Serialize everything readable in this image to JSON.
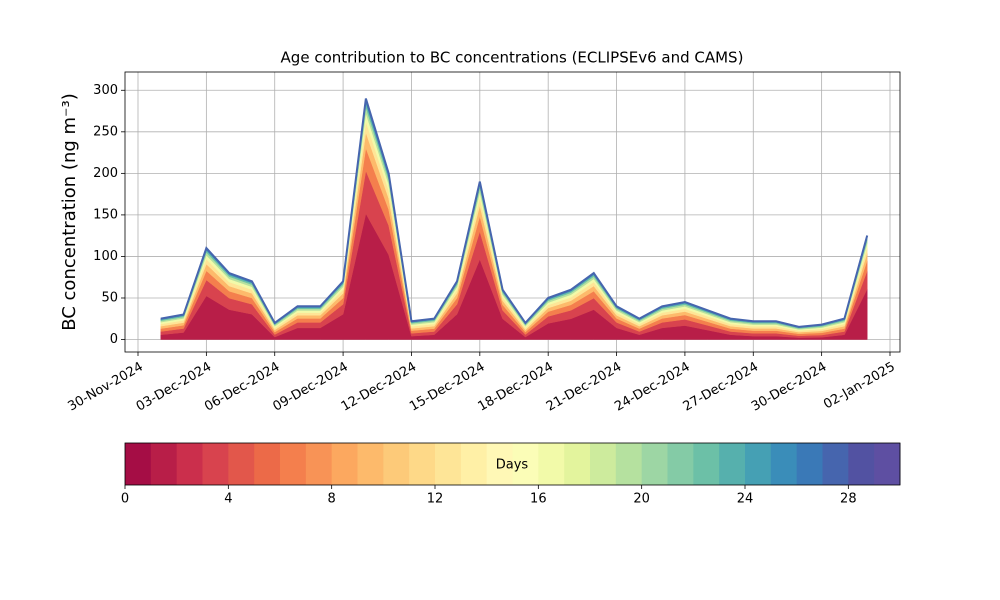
{
  "chart_data": {
    "type": "stacked_area",
    "title": "Age contribution to BC concentrations (ECLIPSEv6 and CAMS)",
    "y_label": "BC concentration (ng m⁻³)",
    "x": [
      "2024-12-01",
      "2024-12-02",
      "2024-12-03",
      "2024-12-04",
      "2024-12-05",
      "2024-12-06",
      "2024-12-07",
      "2024-12-08",
      "2024-12-09",
      "2024-12-10",
      "2024-12-11",
      "2024-12-12",
      "2024-12-13",
      "2024-12-14",
      "2024-12-15",
      "2024-12-16",
      "2024-12-17",
      "2024-12-18",
      "2024-12-19",
      "2024-12-20",
      "2024-12-21",
      "2024-12-22",
      "2024-12-23",
      "2024-12-24",
      "2024-12-25",
      "2024-12-26",
      "2024-12-27",
      "2024-12-28",
      "2024-12-29",
      "2024-12-30",
      "2024-12-31",
      "2025-01-01"
    ],
    "series": [
      {
        "color": "#b81e48",
        "values": [
          5.8,
          8.5,
          52.5,
          36,
          30.5,
          3,
          14,
          14,
          30.5,
          151.5,
          102,
          4.1,
          5.8,
          30.5,
          96.5,
          25,
          3,
          19.5,
          25,
          36,
          14,
          5.8,
          14,
          16.8,
          11.3,
          5.8,
          4.1,
          4.1,
          2.3,
          2.7,
          5.8,
          60.8
        ]
      },
      {
        "color": "#d8434e",
        "values": [
          3.9,
          4.8,
          19.2,
          13.8,
          12,
          3,
          6.6,
          6.6,
          12,
          51.6,
          35.4,
          3.4,
          3.9,
          12,
          33.6,
          10.2,
          3,
          8.4,
          10.2,
          13.8,
          6.6,
          3.9,
          6.6,
          7.5,
          5.7,
          3.9,
          3.4,
          3.4,
          2.3,
          2.7,
          3.9,
          21.9
        ]
      },
      {
        "color": "#f47f4d",
        "values": [
          3.5,
          3.9,
          11.1,
          8.4,
          7.5,
          3,
          4.8,
          4.8,
          7.5,
          27.3,
          19.2,
          3.2,
          3.5,
          7.5,
          18.3,
          6.6,
          3,
          5.7,
          6.6,
          8.4,
          4.8,
          3.5,
          4.8,
          5.3,
          4.4,
          3.5,
          3.2,
          3.2,
          2.3,
          2.7,
          3.5,
          12.5
        ]
      },
      {
        "color": "#fdba6b",
        "values": [
          2.9,
          3.2,
          8,
          6.2,
          5.6,
          2.6,
          3.8,
          3.8,
          5.6,
          18.8,
          13.4,
          2.7,
          2.9,
          5.6,
          12.8,
          5,
          2.6,
          4.4,
          5,
          6.2,
          3.8,
          2.9,
          3.8,
          4.1,
          3.5,
          2.9,
          2.7,
          2.7,
          2,
          2.3,
          2.9,
          8.9
        ]
      },
      {
        "color": "#fee597",
        "values": [
          2.6,
          2.8,
          6,
          4.8,
          4.4,
          2.4,
          3.2,
          3.2,
          4.4,
          13.2,
          9.6,
          2.5,
          2.6,
          4.4,
          9.2,
          4,
          2.4,
          3.6,
          4,
          4.8,
          3.2,
          2.6,
          3.2,
          3.4,
          3,
          2.6,
          2.5,
          2.5,
          1.8,
          2.2,
          2.6,
          6.6
        ]
      },
      {
        "color": "#f2faa9",
        "values": [
          2.2,
          2.3,
          4.7,
          3.8,
          3.5,
          2,
          2.6,
          2.6,
          3.5,
          10.1,
          7.4,
          2.1,
          2.2,
          3.5,
          7.1,
          3.2,
          2,
          2.9,
          3.2,
          3.8,
          2.6,
          2.2,
          2.6,
          2.8,
          2.5,
          2.2,
          2.1,
          2.1,
          1.5,
          1.8,
          2.2,
          5.2
        ]
      },
      {
        "color": "#b5e19f",
        "values": [
          1.7,
          1.8,
          3.4,
          2.8,
          2.6,
          1.6,
          2,
          2,
          2.6,
          7,
          5.2,
          1.6,
          1.7,
          2.6,
          5,
          2.4,
          1.6,
          2.2,
          2.4,
          2.8,
          2,
          1.7,
          2,
          2.1,
          1.9,
          1.7,
          1.6,
          1.6,
          1.2,
          1.4,
          1.7,
          3.7
        ]
      },
      {
        "color": "#6cc0a7",
        "values": [
          1.3,
          1.4,
          2.6,
          2.1,
          2,
          1.2,
          1.5,
          1.5,
          2,
          5.3,
          3.9,
          1.2,
          1.3,
          2,
          3.8,
          1.8,
          1.2,
          1.7,
          1.8,
          2.1,
          1.5,
          1.3,
          1.5,
          1.6,
          1.4,
          1.3,
          1.2,
          1.2,
          0.9,
          1.1,
          1.3,
          2.8
        ]
      },
      {
        "color": "#3a8db9",
        "values": [
          0.9,
          0.9,
          1.7,
          1.4,
          1.3,
          0.8,
          1,
          1,
          1.3,
          3.5,
          2.6,
          0.8,
          0.9,
          1.3,
          2.5,
          1.2,
          0.8,
          1.1,
          1.2,
          1.4,
          1,
          0.9,
          1,
          1.1,
          1,
          0.9,
          0.8,
          0.8,
          0.6,
          0.7,
          0.9,
          1.9
        ]
      },
      {
        "color": "#4665ae",
        "values": [
          0.4,
          0.5,
          0.9,
          0.7,
          0.7,
          0.4,
          0.5,
          0.5,
          0.7,
          1.8,
          1.3,
          0.4,
          0.4,
          0.7,
          1.3,
          0.6,
          0.4,
          0.6,
          0.6,
          0.7,
          0.5,
          0.4,
          0.5,
          0.5,
          0.5,
          0.4,
          0.4,
          0.4,
          0.3,
          0.4,
          0.4,
          0.9
        ]
      }
    ],
    "xlim": [
      "2024-11-30",
      "2025-01-02"
    ],
    "xticks": [
      {
        "value": "2024-11-30",
        "label": "30-Nov-2024"
      },
      {
        "value": "2024-12-03",
        "label": "03-Dec-2024"
      },
      {
        "value": "2024-12-06",
        "label": "06-Dec-2024"
      },
      {
        "value": "2024-12-09",
        "label": "09-Dec-2024"
      },
      {
        "value": "2024-12-12",
        "label": "12-Dec-2024"
      },
      {
        "value": "2024-12-15",
        "label": "15-Dec-2024"
      },
      {
        "value": "2024-12-18",
        "label": "18-Dec-2024"
      },
      {
        "value": "2024-12-21",
        "label": "21-Dec-2024"
      },
      {
        "value": "2024-12-24",
        "label": "24-Dec-2024"
      },
      {
        "value": "2024-12-27",
        "label": "27-Dec-2024"
      },
      {
        "value": "2024-12-30",
        "label": "30-Dec-2024"
      },
      {
        "value": "2025-01-02",
        "label": "02-Jan-2025"
      }
    ],
    "ylim": [
      -15,
      322
    ],
    "yticks": [
      0,
      50,
      100,
      150,
      200,
      250,
      300
    ],
    "grid": true,
    "colorbar": {
      "label": "Days",
      "lim": [
        0,
        30
      ],
      "ticks": [
        0,
        4,
        8,
        12,
        16,
        20,
        24,
        28
      ],
      "colors": [
        "#a50d45",
        "#b81e48",
        "#cb2f4c",
        "#d8434e",
        "#e2574b",
        "#ec6a48",
        "#f47f4d",
        "#f89356",
        "#fca85f",
        "#fdba6b",
        "#fdca79",
        "#fed988",
        "#fee597",
        "#fff0a6",
        "#fff8b6",
        "#fbfdb7",
        "#f2faa9",
        "#e3f49d",
        "#cdeb9d",
        "#b5e19f",
        "#9dd6a4",
        "#84cba6",
        "#6cc0a7",
        "#56b0ad",
        "#45a0b4",
        "#3a8db9",
        "#3a79b7",
        "#4665ae",
        "#5252a2",
        "#5e4fa2"
      ]
    }
  }
}
